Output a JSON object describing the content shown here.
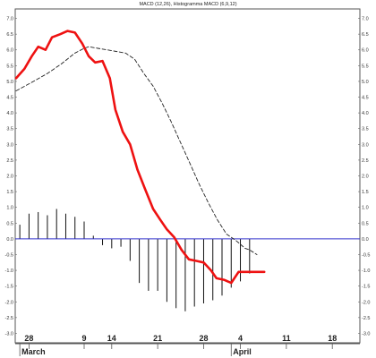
{
  "chart_data": {
    "type": "line",
    "title": "MACD (12,26), Histogramma MACD (6,9,12)",
    "x_labels": [
      {
        "text": "28",
        "idx": 1
      },
      {
        "text": "9",
        "idx": 7
      },
      {
        "text": "14",
        "idx": 10
      },
      {
        "text": "21",
        "idx": 15
      },
      {
        "text": "28",
        "idx": 20
      },
      {
        "text": "4",
        "idx": 24
      },
      {
        "text": "11",
        "idx": 29
      },
      {
        "text": "18",
        "idx": 34
      }
    ],
    "month_labels": [
      {
        "text": "March",
        "idx": 0
      },
      {
        "text": "April",
        "idx": 23
      }
    ],
    "y_ticks": [
      7.0,
      6.5,
      6.0,
      5.5,
      5.0,
      4.5,
      4.0,
      3.5,
      3.0,
      2.5,
      2.0,
      1.5,
      1.0,
      0.5,
      0.0,
      -0.5,
      -1.0,
      -1.5,
      -2.0,
      -2.5,
      -3.0
    ],
    "y_tick_labels": [
      "7.0",
      "6.5",
      "6.0",
      "5.5",
      "5.0",
      "4.5",
      "4.0",
      "3.5",
      "3.0",
      "2.5",
      "2.0",
      "1.5",
      "1.0",
      "0.5",
      "0.0",
      "-0.5",
      "-1.0",
      "-1.5",
      "-2.0",
      "-2.5",
      "-3.0"
    ],
    "ylim": [
      -3.3,
      7.3
    ],
    "xlim": [
      -0.5,
      37
    ],
    "grid": false,
    "series": [
      {
        "kind": "line",
        "color": "#ee1111",
        "style": "solid",
        "x": [
          -0.4,
          0.5,
          1.3,
          2.0,
          2.8,
          3.5,
          4.4,
          5.2,
          6.0,
          6.8,
          7.5,
          8.2,
          9.0,
          9.8,
          10.4,
          11.2,
          12.0,
          12.8,
          13.6,
          14.5,
          15.3,
          16.0,
          16.8,
          17.6,
          18.4,
          19.2,
          20.0,
          20.8,
          21.4,
          22.2,
          23.0,
          23.8,
          24.4,
          25.2,
          25.8,
          26.6
        ],
        "y": [
          5.1,
          5.4,
          5.8,
          6.1,
          6.0,
          6.4,
          6.5,
          6.6,
          6.55,
          6.2,
          5.8,
          5.6,
          5.65,
          5.1,
          4.1,
          3.4,
          3.0,
          2.2,
          1.6,
          0.95,
          0.6,
          0.3,
          0.05,
          -0.35,
          -0.65,
          -0.7,
          -0.75,
          -1.0,
          -1.25,
          -1.3,
          -1.4,
          -1.05,
          -1.05,
          -1.05,
          -1.05,
          -1.05
        ]
      },
      {
        "kind": "line",
        "color": "#222222",
        "style": "dashed",
        "x": [
          -0.4,
          1.5,
          3.0,
          4.5,
          6.0,
          7.0,
          7.5,
          8.5,
          9.5,
          10.5,
          11.5,
          12.5,
          13.5,
          14.5,
          15.5,
          16.5,
          17.5,
          18.5,
          19.5,
          20.5,
          21.5,
          22.5,
          23.5,
          24.5,
          25.0,
          25.8
        ],
        "y": [
          4.7,
          5.0,
          5.25,
          5.55,
          5.9,
          6.05,
          6.1,
          6.05,
          6.0,
          5.95,
          5.9,
          5.7,
          5.25,
          4.85,
          4.3,
          3.7,
          3.05,
          2.4,
          1.75,
          1.15,
          0.6,
          0.15,
          -0.05,
          -0.3,
          -0.35,
          -0.5
        ]
      }
    ],
    "histogram": {
      "color": "#111111",
      "x": [
        0,
        1,
        2,
        3,
        4,
        5,
        6,
        7,
        8,
        9,
        10,
        11,
        12,
        13,
        14,
        15,
        16,
        17,
        18,
        19,
        20,
        21,
        22,
        23,
        24,
        25
      ],
      "y": [
        0.45,
        0.8,
        0.85,
        0.75,
        0.95,
        0.8,
        0.7,
        0.55,
        0.1,
        -0.2,
        -0.3,
        -0.25,
        -0.7,
        -1.4,
        -1.65,
        -1.65,
        -2.0,
        -2.2,
        -2.3,
        -2.15,
        -2.05,
        -1.95,
        -1.8,
        -1.55,
        -1.35,
        -1.1
      ]
    },
    "zero_line_color": "#3333cc"
  }
}
